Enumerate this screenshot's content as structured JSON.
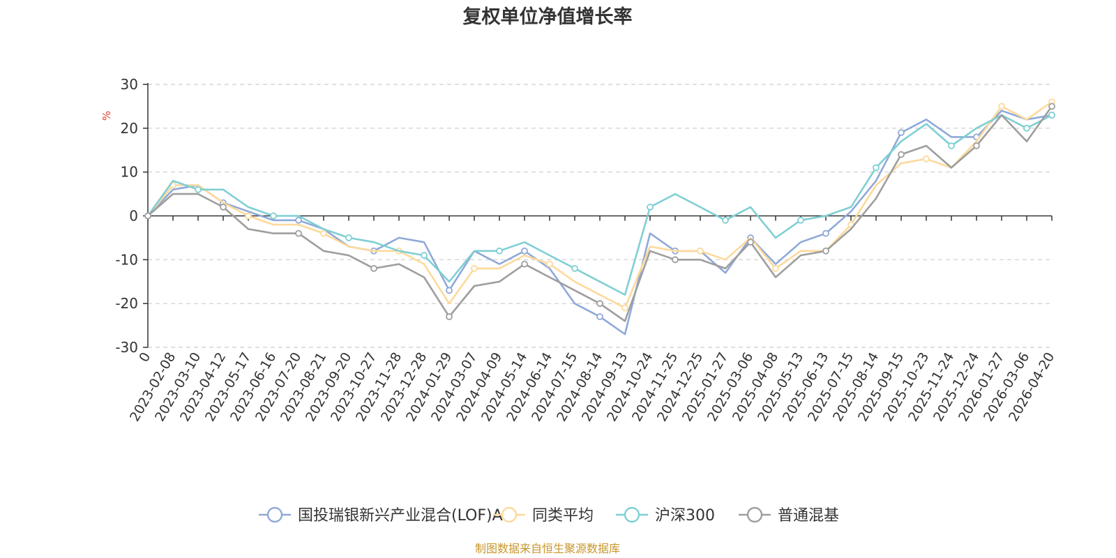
{
  "chart_data": {
    "type": "line",
    "title": "复权单位净值增长率",
    "ylabel": "%",
    "ylim": [
      -30,
      30
    ],
    "yticks": [
      "30",
      "20",
      "10",
      "0",
      "-10",
      "-20",
      "-30"
    ],
    "grid": true,
    "legend_position": "bottom",
    "x": [
      "0",
      "2023-02-08",
      "2023-03-10",
      "2023-04-12",
      "2023-05-17",
      "2023-06-16",
      "2023-07-20",
      "2023-08-21",
      "2023-09-20",
      "2023-10-27",
      "2023-11-28",
      "2023-12-28",
      "2024-01-29",
      "2024-03-07",
      "2024-04-09",
      "2024-05-14",
      "2024-06-14",
      "2024-07-15",
      "2024-08-14",
      "2024-09-13",
      "2024-10-24",
      "2024-11-25",
      "2024-12-25",
      "2025-01-27",
      "2025-03-06",
      "2025-04-08",
      "2025-05-13",
      "2025-06-13",
      "2025-07-15",
      "2025-08-14",
      "2025-09-15",
      "2025-10-23",
      "2025-11-24",
      "2025-12-24",
      "2026-01-27",
      "2026-03-06",
      "2026-04-20"
    ],
    "series": [
      {
        "name": "国投瑞银新兴产业混合(LOF)A",
        "color": "#8fa9d8",
        "values": [
          0,
          6,
          7,
          3,
          1,
          -1,
          -1,
          -3,
          -7,
          -8,
          -5,
          -6,
          -17,
          -8,
          -11,
          -8,
          -12,
          -20,
          -23,
          -27,
          -4,
          -8,
          -8,
          -13,
          -5,
          -11,
          -6,
          -4,
          1,
          8,
          19,
          22,
          18,
          18,
          24,
          22,
          23
        ]
      },
      {
        "name": "同类平均",
        "color": "#fdd99b",
        "values": [
          0,
          7,
          7,
          3,
          0,
          -2,
          -2,
          -4,
          -7,
          -8,
          -8,
          -11,
          -20,
          -12,
          -12,
          -9,
          -11,
          -15,
          -18,
          -21,
          -7,
          -8,
          -8,
          -10,
          -5,
          -12,
          -8,
          -8,
          -2,
          7,
          12,
          13,
          11,
          17,
          25,
          22,
          26
        ]
      },
      {
        "name": "沪深300",
        "color": "#7fcfd3",
        "values": [
          0,
          8,
          6,
          6,
          2,
          0,
          0,
          -3,
          -5,
          -6,
          -8,
          -9,
          -15,
          -8,
          -8,
          -6,
          -9,
          -12,
          -15,
          -18,
          2,
          5,
          2,
          -1,
          2,
          -5,
          -1,
          0,
          2,
          11,
          17,
          21,
          16,
          20,
          23,
          20,
          23
        ]
      },
      {
        "name": "普通混基",
        "color": "#9e9e9e",
        "values": [
          0,
          5,
          5,
          2,
          -3,
          -4,
          -4,
          -8,
          -9,
          -12,
          -11,
          -14,
          -23,
          -16,
          -15,
          -11,
          -14,
          -17,
          -20,
          -24,
          -8,
          -10,
          -10,
          -12,
          -6,
          -14,
          -9,
          -8,
          -3,
          4,
          14,
          16,
          11,
          16,
          23,
          17,
          25
        ]
      }
    ]
  },
  "source_text": "制图数据来自恒生聚源数据库",
  "colors": {
    "axis": "#333333",
    "grid": "#cccccc",
    "unit": "#e83b2c",
    "source": "#c8962a"
  }
}
